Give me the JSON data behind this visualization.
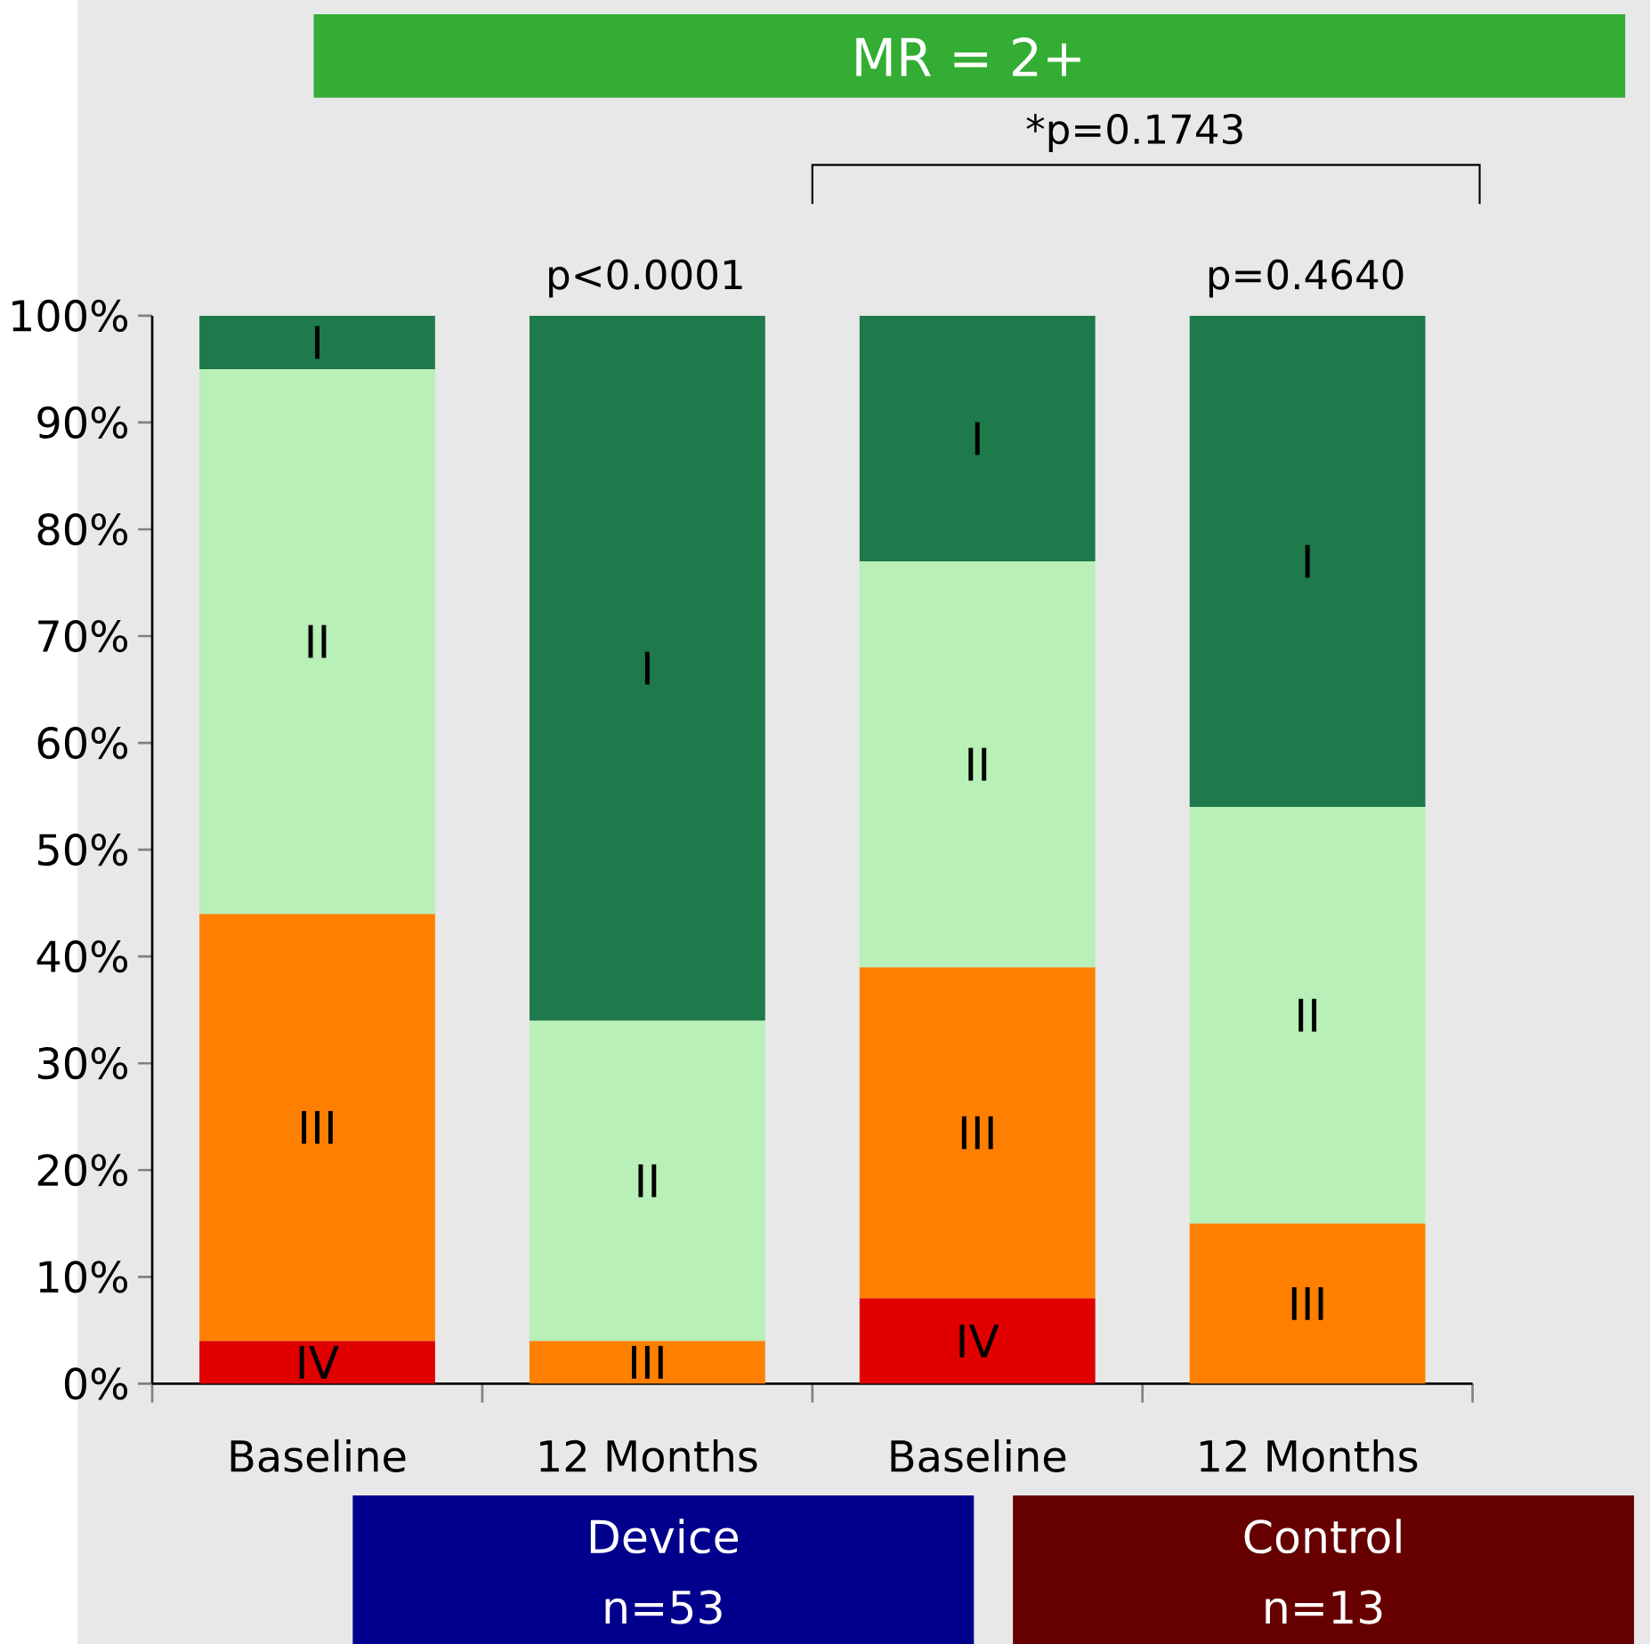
{
  "chart_data": {
    "type": "bar",
    "stacked": true,
    "title": "MR = 2+",
    "categories": [
      "Baseline",
      "12 Months",
      "Baseline",
      "12 Months"
    ],
    "series": [
      {
        "name": "IV",
        "color": "#e00000",
        "values": [
          4,
          null,
          8,
          null
        ]
      },
      {
        "name": "III",
        "color": "#ff8000",
        "values": [
          40,
          4,
          31,
          15
        ]
      },
      {
        "name": "II",
        "color": "#b8f0b8",
        "values": [
          51,
          30,
          38,
          39
        ]
      },
      {
        "name": "I",
        "color": "#1e7a4a",
        "values": [
          5,
          66,
          23,
          46
        ]
      }
    ],
    "ylim": [
      0,
      100
    ],
    "yticks": [
      {
        "value": 0,
        "label": "0%"
      },
      {
        "value": 10,
        "label": "10%"
      },
      {
        "value": 20,
        "label": "20%"
      },
      {
        "value": 30,
        "label": "30%"
      },
      {
        "value": 40,
        "label": "40%"
      },
      {
        "value": 50,
        "label": "50%"
      },
      {
        "value": 60,
        "label": "60%"
      },
      {
        "value": 70,
        "label": "70%"
      },
      {
        "value": 80,
        "label": "80%"
      },
      {
        "value": 90,
        "label": "90%"
      },
      {
        "value": 100,
        "label": "100%"
      }
    ],
    "annotations": [
      "*p=0.1743",
      "p<0.0001",
      "p=0.4640",
      "Device",
      "n=53",
      "Control",
      "n=13"
    ],
    "grid": false
  }
}
